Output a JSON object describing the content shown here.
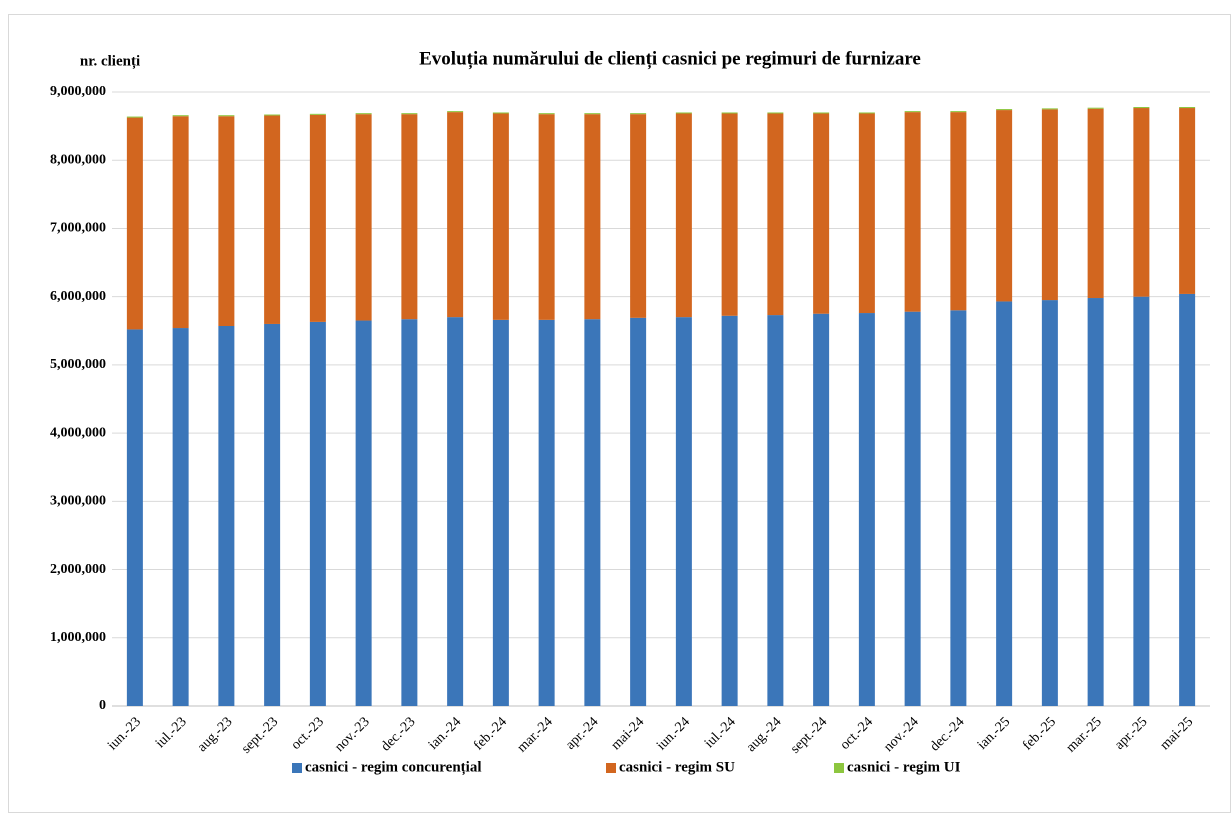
{
  "chart_data": {
    "type": "stacked_bar",
    "title": "Evoluția numărului de clienți casnici pe regimuri de furnizare",
    "y_label": "nr. clienți",
    "categories": [
      "iun.-23",
      "iul.-23",
      "aug.-23",
      "sept.-23",
      "oct.-23",
      "nov.-23",
      "dec.-23",
      "ian.-24",
      "feb.-24",
      "mar.-24",
      "apr.-24",
      "mai-24",
      "iun.-24",
      "iul.-24",
      "aug.-24",
      "sept.-24",
      "oct.-24",
      "nov.-24",
      "dec.-24",
      "ian.-25",
      "feb.-25",
      "mar.-25",
      "apr.-25",
      "mai-25"
    ],
    "series": [
      {
        "name": "casnici - regim concurențial",
        "color": "#3b76b9",
        "values": [
          5520000,
          5540000,
          5570000,
          5600000,
          5630000,
          5650000,
          5670000,
          5700000,
          5660000,
          5660000,
          5670000,
          5690000,
          5700000,
          5720000,
          5730000,
          5750000,
          5760000,
          5780000,
          5800000,
          5930000,
          5950000,
          5980000,
          6000000,
          6040000
        ]
      },
      {
        "name": "casnici - regim SU",
        "color": "#d2661f",
        "values": [
          3105000,
          3105000,
          3075000,
          3055000,
          3035000,
          3025000,
          3005000,
          3005000,
          3025000,
          3015000,
          3005000,
          2985000,
          2985000,
          2965000,
          2955000,
          2935000,
          2925000,
          2925000,
          2905000,
          2805000,
          2795000,
          2775000,
          2765000,
          2725000
        ]
      },
      {
        "name": "casnici - regim UI",
        "color": "#8dc63f",
        "values": [
          15000,
          15000,
          15000,
          15000,
          15000,
          15000,
          15000,
          15000,
          15000,
          15000,
          15000,
          15000,
          15000,
          15000,
          15000,
          15000,
          15000,
          15000,
          15000,
          15000,
          15000,
          15000,
          15000,
          15000
        ]
      }
    ],
    "ylim": [
      0,
      9000000
    ],
    "yticks": [
      0,
      {
        "value": 1000000,
        "label": "1,000,000"
      },
      {
        "value": 2000000,
        "label": "2,000,000"
      },
      {
        "value": 3000000,
        "label": "3,000,000"
      },
      {
        "value": 4000000,
        "label": "4,000,000"
      },
      {
        "value": 5000000,
        "label": "5,000,000"
      },
      {
        "value": 6000000,
        "label": "6,000,000"
      },
      {
        "value": 7000000,
        "label": "7,000,000"
      },
      {
        "value": 8000000,
        "label": "8,000,000"
      },
      {
        "value": 9000000,
        "label": "9,000,000"
      }
    ],
    "grid": true,
    "legend": "bottom"
  }
}
